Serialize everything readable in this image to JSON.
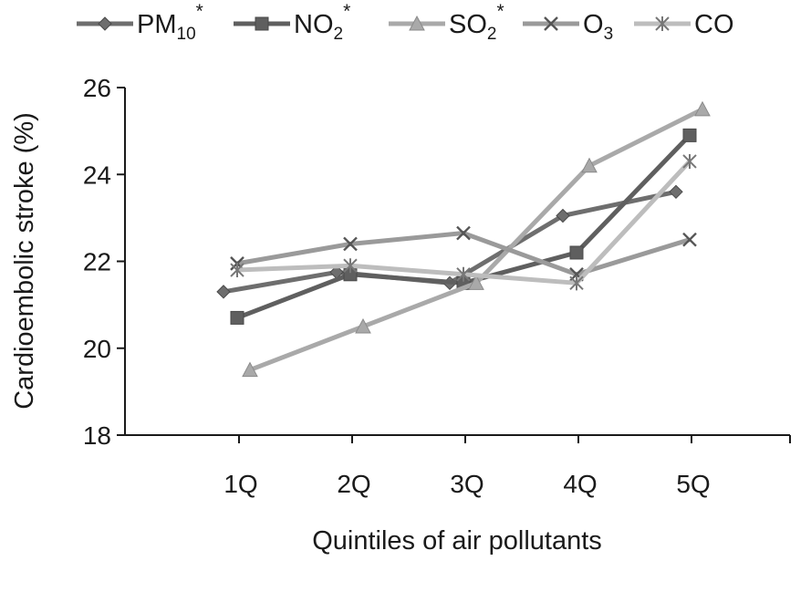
{
  "chart_data": {
    "type": "line",
    "categories": [
      "1Q",
      "2Q",
      "3Q",
      "4Q",
      "5Q"
    ],
    "xlabel": "Quintiles of air pollutants",
    "ylabel": "Cardioembolic stroke (%)",
    "ylim": [
      18,
      26
    ],
    "yticks": [
      18,
      20,
      22,
      24,
      26
    ],
    "legend_position": "top",
    "grid": false,
    "series": [
      {
        "name": "PM10",
        "name_base": "PM",
        "name_sub": "10",
        "name_sup": "*",
        "marker": "diamond",
        "color": "#6e6e6e",
        "values": [
          21.3,
          21.75,
          21.5,
          23.05,
          23.6
        ]
      },
      {
        "name": "NO2",
        "name_base": "NO",
        "name_sub": "2",
        "name_sup": "*",
        "marker": "square",
        "color": "#5f5f5f",
        "values": [
          20.7,
          21.7,
          21.5,
          22.2,
          24.9
        ]
      },
      {
        "name": "SO2",
        "name_base": "SO",
        "name_sub": "2",
        "name_sup": "*",
        "marker": "triangle",
        "color": "#a9a9a9",
        "values": [
          19.5,
          20.5,
          21.5,
          24.2,
          25.5
        ]
      },
      {
        "name": "O3",
        "name_base": "O",
        "name_sub": "3",
        "name_sup": "",
        "marker": "x",
        "color": "#9a9a9a",
        "values": [
          21.95,
          22.4,
          22.65,
          21.7,
          22.5
        ]
      },
      {
        "name": "CO",
        "name_base": "CO",
        "name_sub": "",
        "name_sup": "",
        "marker": "asterisk",
        "color": "#bdbdbd",
        "values": [
          21.8,
          21.9,
          21.7,
          21.5,
          24.3
        ]
      }
    ]
  }
}
